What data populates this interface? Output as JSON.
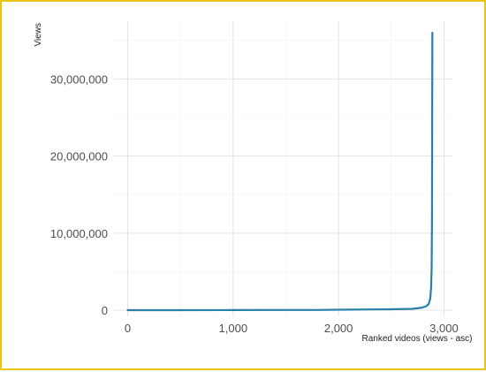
{
  "chart_data": {
    "type": "line",
    "title": "",
    "xlabel": "Ranked videos (views - asc)",
    "ylabel": "Views",
    "xlim": [
      -130,
      3080
    ],
    "ylim": [
      -800000,
      37500000
    ],
    "x_ticks": [
      0,
      1000,
      2000,
      3000
    ],
    "x_tick_labels": [
      "0",
      "1,000",
      "2,000",
      "3,000"
    ],
    "x_minor_ticks": [
      500,
      1500,
      2500
    ],
    "y_ticks": [
      0,
      10000000,
      20000000,
      30000000
    ],
    "y_tick_labels": [
      "0",
      "10,000,000",
      "20,000,000",
      "30,000,000"
    ],
    "y_minor_ticks": [
      5000000,
      15000000,
      25000000,
      35000000
    ],
    "grid": true,
    "legend": "none",
    "series": [
      {
        "color": "#2a7fa8",
        "points": [
          [
            0,
            0
          ],
          [
            500,
            5000
          ],
          [
            1000,
            10000
          ],
          [
            1500,
            20000
          ],
          [
            1800,
            30000
          ],
          [
            2000,
            60000
          ],
          [
            2300,
            90000
          ],
          [
            2500,
            120000
          ],
          [
            2700,
            180000
          ],
          [
            2780,
            300000
          ],
          [
            2830,
            500000
          ],
          [
            2855,
            800000
          ],
          [
            2870,
            1500000
          ],
          [
            2878,
            3000000
          ],
          [
            2883,
            5500000
          ],
          [
            2886,
            12000000
          ],
          [
            2888,
            25000000
          ],
          [
            2890,
            36000000
          ]
        ]
      }
    ]
  }
}
